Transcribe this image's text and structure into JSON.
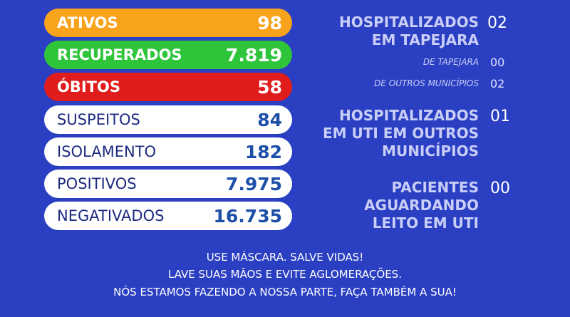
{
  "counters": [
    {
      "label": "ATIVOS",
      "value": "98"
    },
    {
      "label": "RECUPERADOS",
      "value": "7.819"
    },
    {
      "label": "ÓBITOS",
      "value": "58"
    },
    {
      "label": "SUSPEITOS",
      "value": "84"
    },
    {
      "label": "ISOLAMENTO",
      "value": "182"
    },
    {
      "label": "POSITIVOS",
      "value": "7.975"
    },
    {
      "label": "NEGATIVADOS",
      "value": "16.735"
    }
  ],
  "hospital": {
    "title": [
      "HOSPITALIZADOS",
      "EM TAPEJARA"
    ],
    "value": "02",
    "breakdown": [
      {
        "label": "DE TAPEJARA",
        "value": "00"
      },
      {
        "label": "DE OUTROS MUNICÍPIOS",
        "value": "02"
      }
    ]
  },
  "icu": {
    "title": [
      "HOSPITALIZADOS",
      "EM UTI EM OUTROS",
      "MUNICÍPIOS"
    ],
    "value": "01"
  },
  "waiting": {
    "title": [
      "PACIENTES",
      "AGUARDANDO",
      "LEITO EM UTI"
    ],
    "value": "00"
  },
  "footer": [
    "USE MÁSCARA. SALVE VIDAS!",
    "LAVE SUAS MÃOS E EVITE AGLOMERAÇÕES.",
    "NÓS ESTAMOS FAZENDO A NOSSA PARTE, FAÇA TAMBÉM A SUA!"
  ]
}
